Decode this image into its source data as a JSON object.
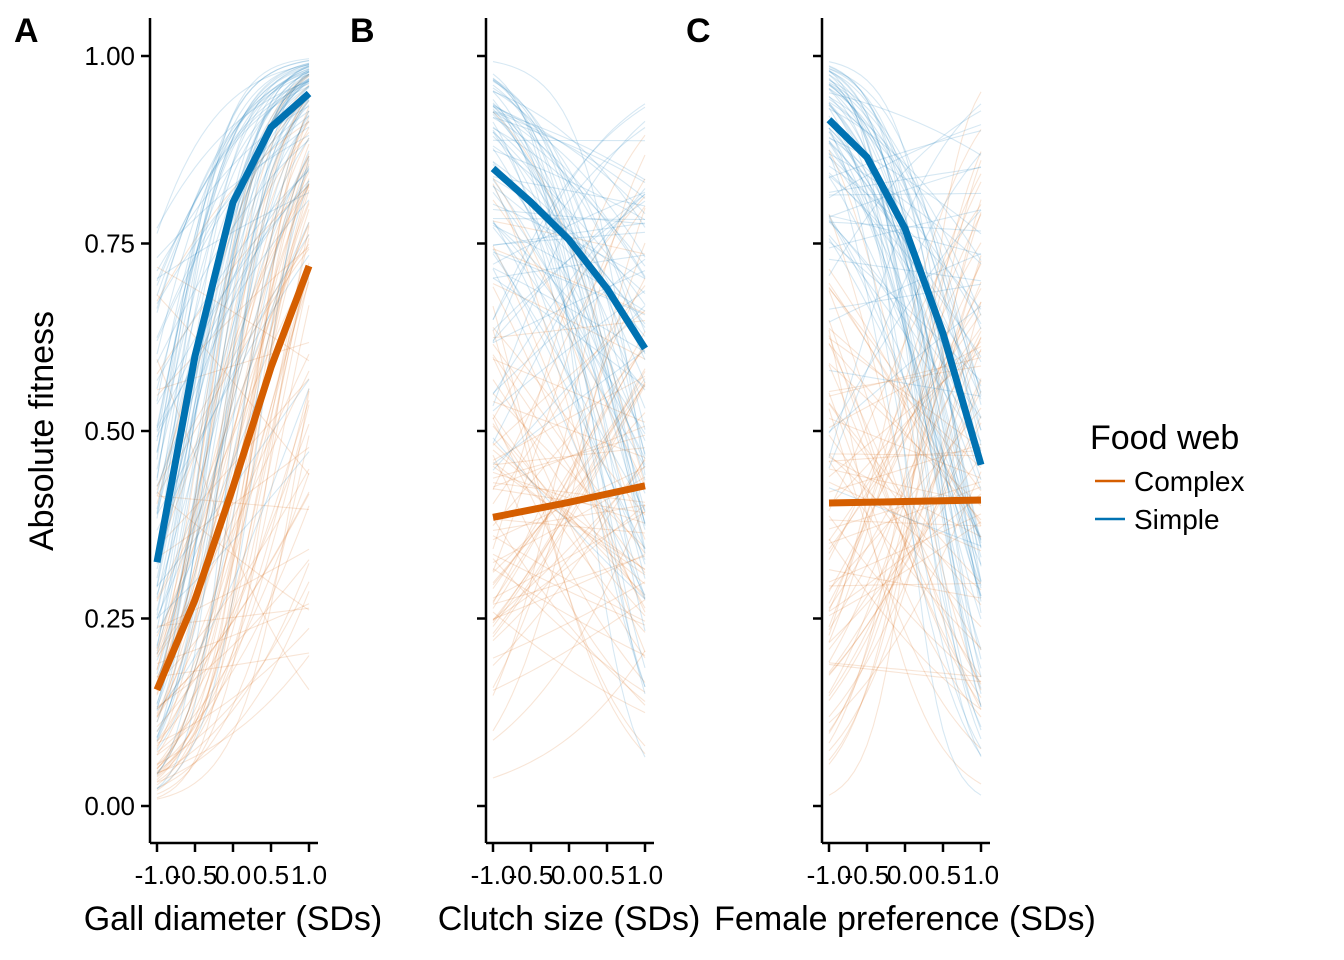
{
  "colors": {
    "complex": "#D55E00",
    "simple": "#0072B2"
  },
  "legend": {
    "title": "Food web",
    "items": [
      {
        "label": "Complex",
        "color": "#D55E00"
      },
      {
        "label": "Simple",
        "color": "#0072B2"
      }
    ]
  },
  "y_axis": {
    "title": "Absolute fitness",
    "ticks": [
      0.0,
      0.25,
      0.5,
      0.75,
      1.0
    ],
    "tick_labels": [
      "0.00",
      "0.25",
      "0.50",
      "0.75",
      "1.00"
    ]
  },
  "chart_data": [
    {
      "panel": "A",
      "type": "line",
      "xlabel": "Gall diameter (SDs)",
      "ylabel": "Absolute fitness",
      "xlim": [
        -1.0,
        1.0
      ],
      "ylim": [
        0.0,
        1.0
      ],
      "x_ticks": [
        -1.0,
        -0.5,
        0.0,
        0.5,
        1.0
      ],
      "x_tick_labels": [
        "-1.0",
        "-0.5",
        "0.0",
        "0.5",
        "1.0"
      ],
      "grid": false,
      "legend_position": "right",
      "series": [
        {
          "name": "Complex",
          "x": [
            -1.0,
            -0.5,
            0.0,
            0.5,
            1.0
          ],
          "values": [
            0.155,
            0.275,
            0.425,
            0.585,
            0.72
          ]
        },
        {
          "name": "Simple",
          "x": [
            -1.0,
            -0.5,
            0.0,
            0.5,
            1.0
          ],
          "values": [
            0.325,
            0.6,
            0.805,
            0.905,
            0.95
          ]
        }
      ]
    },
    {
      "panel": "B",
      "type": "line",
      "xlabel": "Clutch size (SDs)",
      "ylabel": "Absolute fitness",
      "xlim": [
        -1.0,
        1.0
      ],
      "ylim": [
        0.0,
        1.0
      ],
      "x_ticks": [
        -1.0,
        -0.5,
        0.0,
        0.5,
        1.0
      ],
      "x_tick_labels": [
        "-1.0",
        "-0.5",
        "0.0",
        "0.5",
        "1.0"
      ],
      "grid": false,
      "legend_position": "right",
      "series": [
        {
          "name": "Complex",
          "x": [
            -1.0,
            -0.5,
            0.0,
            0.5,
            1.0
          ],
          "values": [
            0.385,
            0.395,
            0.405,
            0.416,
            0.427
          ]
        },
        {
          "name": "Simple",
          "x": [
            -1.0,
            -0.5,
            0.0,
            0.5,
            1.0
          ],
          "values": [
            0.85,
            0.805,
            0.755,
            0.69,
            0.61
          ]
        }
      ]
    },
    {
      "panel": "C",
      "type": "line",
      "xlabel": "Female preference (SDs)",
      "ylabel": "Absolute fitness",
      "xlim": [
        -1.0,
        1.0
      ],
      "ylim": [
        0.0,
        1.0
      ],
      "x_ticks": [
        -1.0,
        -0.5,
        0.0,
        0.5,
        1.0
      ],
      "x_tick_labels": [
        "-1.0",
        "-0.5",
        "0.0",
        "0.5",
        "1.0"
      ],
      "grid": false,
      "legend_position": "right",
      "series": [
        {
          "name": "Complex",
          "x": [
            -1.0,
            -0.5,
            0.0,
            0.5,
            1.0
          ],
          "values": [
            0.404,
            0.405,
            0.406,
            0.407,
            0.408
          ]
        },
        {
          "name": "Simple",
          "x": [
            -1.0,
            -0.5,
            0.0,
            0.5,
            1.0
          ],
          "values": [
            0.915,
            0.865,
            0.77,
            0.63,
            0.455
          ]
        }
      ]
    }
  ]
}
